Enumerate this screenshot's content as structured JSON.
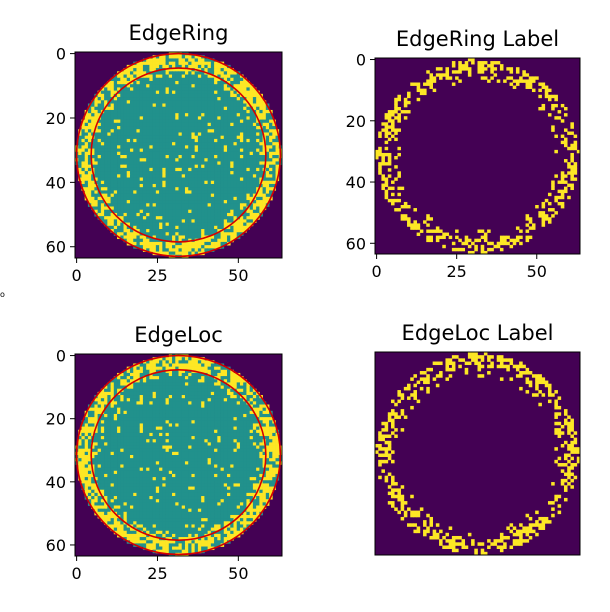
{
  "chart_data": [
    {
      "type": "heatmap",
      "title": "EdgeRing",
      "image_size": 64,
      "xticks": [
        "0",
        "25",
        "50"
      ],
      "yticks": [
        "0",
        "20",
        "40",
        "60"
      ],
      "show_xticks": true,
      "show_yticks": true,
      "pattern": "wafer",
      "seed": 11,
      "overlay_circles": [
        {
          "cx": 31.5,
          "cy": 31.5,
          "r": 31.5,
          "color": "#d40000"
        },
        {
          "cx": 31.5,
          "cy": 31.5,
          "r": 27,
          "color": "#d40000"
        }
      ]
    },
    {
      "type": "heatmap",
      "title": "EdgeRing Label",
      "image_size": 64,
      "xticks": [
        "0",
        "25",
        "50"
      ],
      "yticks": [
        "0",
        "20",
        "40",
        "60"
      ],
      "show_xticks": true,
      "show_yticks": true,
      "pattern": "ring",
      "seed": 23,
      "overlay_circles": []
    },
    {
      "type": "heatmap",
      "title": "EdgeLoc",
      "image_size": 64,
      "xticks": [
        "0",
        "25",
        "50"
      ],
      "yticks": [
        "0",
        "20",
        "40",
        "60"
      ],
      "show_xticks": true,
      "show_yticks": true,
      "pattern": "wafer",
      "seed": 37,
      "overlay_circles": [
        {
          "cx": 31.5,
          "cy": 31.5,
          "r": 31.5,
          "color": "#d40000"
        },
        {
          "cx": 31.5,
          "cy": 31.5,
          "r": 27,
          "color": "#d40000"
        }
      ]
    },
    {
      "type": "heatmap",
      "title": "EdgeLoc Label",
      "image_size": 64,
      "xticks": [],
      "yticks": [],
      "show_xticks": false,
      "show_yticks": false,
      "pattern": "ring",
      "seed": 53,
      "overlay_circles": []
    }
  ],
  "colors": {
    "background": "#440154",
    "wafer": "#21918c",
    "defect": "#fde725"
  },
  "stray_mark": "o"
}
